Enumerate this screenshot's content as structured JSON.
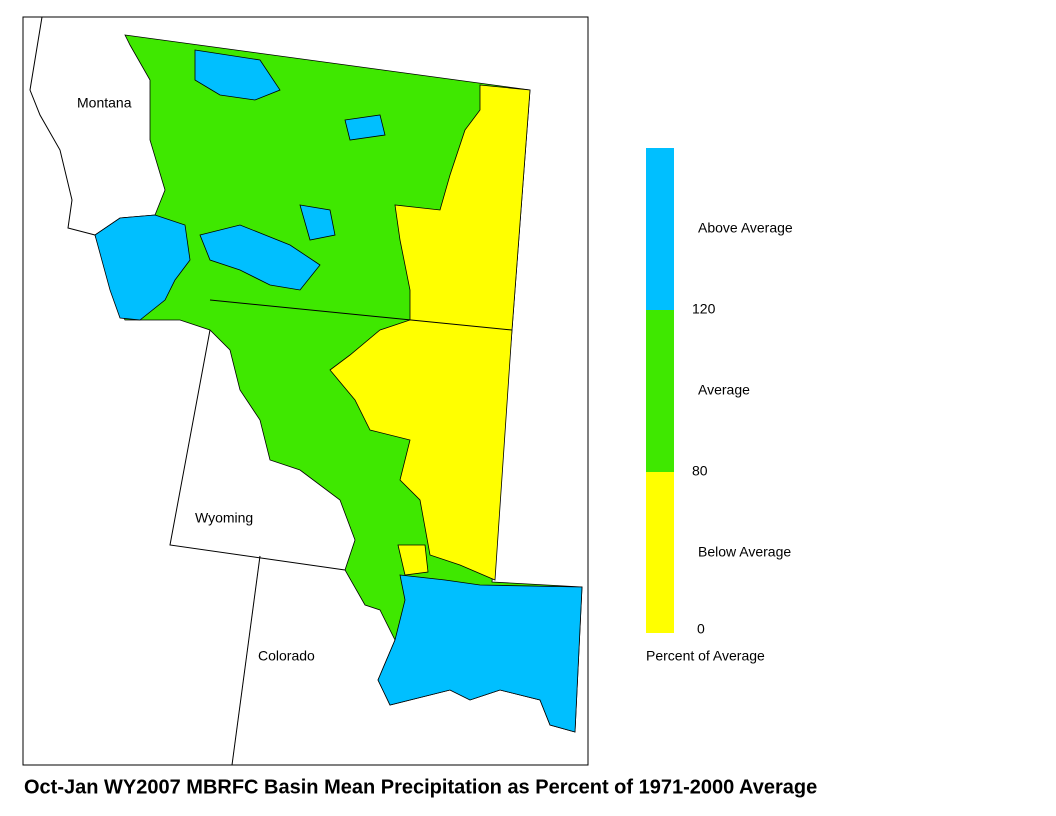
{
  "map": {
    "state_labels": [
      "Montana",
      "Wyoming",
      "Colorado"
    ],
    "legend": {
      "classes": [
        {
          "label": "Above Average",
          "color": "#00bfff"
        },
        {
          "label": "Average",
          "color": "#3fe800"
        },
        {
          "label": "Below Average",
          "color": "#ffff00"
        }
      ],
      "breaks": [
        120,
        80,
        0
      ],
      "title": "Percent of Average"
    },
    "caption": "Oct-Jan WY2007 MBRFC Basin Mean Precipitation as Percent of 1971-2000 Average"
  }
}
